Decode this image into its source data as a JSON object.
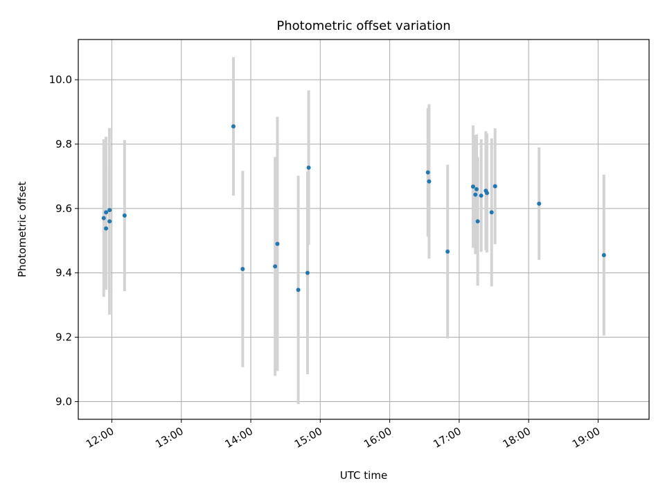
{
  "chart_data": {
    "type": "scatter",
    "title": "Photometric offset variation",
    "xlabel": "UTC time",
    "ylabel": "Photometric offset",
    "xlim": [
      "11:31",
      "19:44"
    ],
    "ylim": [
      8.945,
      10.125
    ],
    "x_ticks": [
      "12:00",
      "13:00",
      "14:00",
      "15:00",
      "16:00",
      "17:00",
      "18:00",
      "19:00"
    ],
    "y_ticks": [
      "9.0",
      "9.2",
      "9.4",
      "9.6",
      "9.8",
      "10.0"
    ],
    "grid": true,
    "colors": {
      "point": "#1f77b4",
      "errorbar": "#d3d3d3",
      "grid": "#b0b0b0"
    },
    "points": [
      {
        "x": "11:53",
        "y": 9.57,
        "yerr": 0.245
      },
      {
        "x": "11:55",
        "y": 9.538,
        "yerr": 0.19
      },
      {
        "x": "11:55",
        "y": 9.588,
        "yerr": 0.235
      },
      {
        "x": "11:58",
        "y": 9.595,
        "yerr": 0.255
      },
      {
        "x": "11:58",
        "y": 9.56,
        "yerr": 0.29
      },
      {
        "x": "12:11",
        "y": 9.578,
        "yerr": 0.235
      },
      {
        "x": "13:45",
        "y": 9.855,
        "yerr": 0.215
      },
      {
        "x": "13:53",
        "y": 9.412,
        "yerr": 0.305
      },
      {
        "x": "14:21",
        "y": 9.42,
        "yerr": 0.34
      },
      {
        "x": "14:23",
        "y": 9.49,
        "yerr": 0.395
      },
      {
        "x": "14:41",
        "y": 9.347,
        "yerr": 0.355
      },
      {
        "x": "14:49",
        "y": 9.4,
        "yerr": 0.315
      },
      {
        "x": "14:50",
        "y": 9.727,
        "yerr": 0.24
      },
      {
        "x": "16:33",
        "y": 9.712,
        "yerr": 0.2
      },
      {
        "x": "16:34",
        "y": 9.684,
        "yerr": 0.24
      },
      {
        "x": "16:50",
        "y": 9.466,
        "yerr": 0.27
      },
      {
        "x": "17:12",
        "y": 9.668,
        "yerr": 0.19
      },
      {
        "x": "17:14",
        "y": 9.643,
        "yerr": 0.185
      },
      {
        "x": "17:15",
        "y": 9.66,
        "yerr": 0.17
      },
      {
        "x": "17:16",
        "y": 9.56,
        "yerr": 0.2
      },
      {
        "x": "17:19",
        "y": 9.64,
        "yerr": 0.175
      },
      {
        "x": "17:23",
        "y": 9.655,
        "yerr": 0.185
      },
      {
        "x": "17:24",
        "y": 9.648,
        "yerr": 0.185
      },
      {
        "x": "17:28",
        "y": 9.588,
        "yerr": 0.23
      },
      {
        "x": "17:31",
        "y": 9.669,
        "yerr": 0.18
      },
      {
        "x": "18:09",
        "y": 9.615,
        "yerr": 0.175
      },
      {
        "x": "19:05",
        "y": 9.455,
        "yerr": 0.25
      }
    ]
  }
}
